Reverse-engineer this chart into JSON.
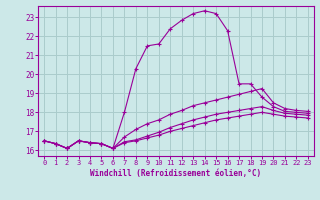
{
  "xlabel": "Windchill (Refroidissement éolien,°C)",
  "bg_color": "#cce8e8",
  "grid_color": "#aacccc",
  "line_color": "#990099",
  "xlim": [
    -0.5,
    23.5
  ],
  "ylim": [
    15.7,
    23.6
  ],
  "yticks": [
    16,
    17,
    18,
    19,
    20,
    21,
    22,
    23
  ],
  "xticks": [
    0,
    1,
    2,
    3,
    4,
    5,
    6,
    7,
    8,
    9,
    10,
    11,
    12,
    13,
    14,
    15,
    16,
    17,
    18,
    19,
    20,
    21,
    22,
    23
  ],
  "lines": [
    {
      "x": [
        0,
        1,
        2,
        3,
        4,
        5,
        6,
        7,
        8,
        9,
        10,
        11,
        12,
        13,
        14,
        15,
        16,
        17,
        18,
        19,
        20,
        21,
        22,
        23
      ],
      "y": [
        16.5,
        16.35,
        16.1,
        16.5,
        16.4,
        16.35,
        16.1,
        18.0,
        20.3,
        21.5,
        21.6,
        22.4,
        22.85,
        23.2,
        23.35,
        23.2,
        22.3,
        19.5,
        19.5,
        18.8,
        18.3,
        18.05,
        18.0,
        17.95
      ]
    },
    {
      "x": [
        0,
        1,
        2,
        3,
        4,
        5,
        6,
        7,
        8,
        9,
        10,
        11,
        12,
        13,
        14,
        15,
        16,
        17,
        18,
        19,
        20,
        21,
        22,
        23
      ],
      "y": [
        16.5,
        16.35,
        16.1,
        16.5,
        16.4,
        16.35,
        16.1,
        16.7,
        17.1,
        17.4,
        17.6,
        17.9,
        18.1,
        18.35,
        18.5,
        18.65,
        18.8,
        18.95,
        19.1,
        19.25,
        18.5,
        18.2,
        18.1,
        18.05
      ]
    },
    {
      "x": [
        0,
        1,
        2,
        3,
        4,
        5,
        6,
        7,
        8,
        9,
        10,
        11,
        12,
        13,
        14,
        15,
        16,
        17,
        18,
        19,
        20,
        21,
        22,
        23
      ],
      "y": [
        16.5,
        16.35,
        16.1,
        16.5,
        16.4,
        16.35,
        16.1,
        16.45,
        16.55,
        16.75,
        16.95,
        17.2,
        17.4,
        17.6,
        17.75,
        17.9,
        18.0,
        18.1,
        18.2,
        18.3,
        18.1,
        17.95,
        17.9,
        17.85
      ]
    },
    {
      "x": [
        0,
        1,
        2,
        3,
        4,
        5,
        6,
        7,
        8,
        9,
        10,
        11,
        12,
        13,
        14,
        15,
        16,
        17,
        18,
        19,
        20,
        21,
        22,
        23
      ],
      "y": [
        16.5,
        16.35,
        16.1,
        16.5,
        16.4,
        16.35,
        16.1,
        16.4,
        16.5,
        16.65,
        16.8,
        17.0,
        17.15,
        17.3,
        17.45,
        17.6,
        17.7,
        17.8,
        17.9,
        18.0,
        17.9,
        17.8,
        17.75,
        17.7
      ]
    }
  ]
}
